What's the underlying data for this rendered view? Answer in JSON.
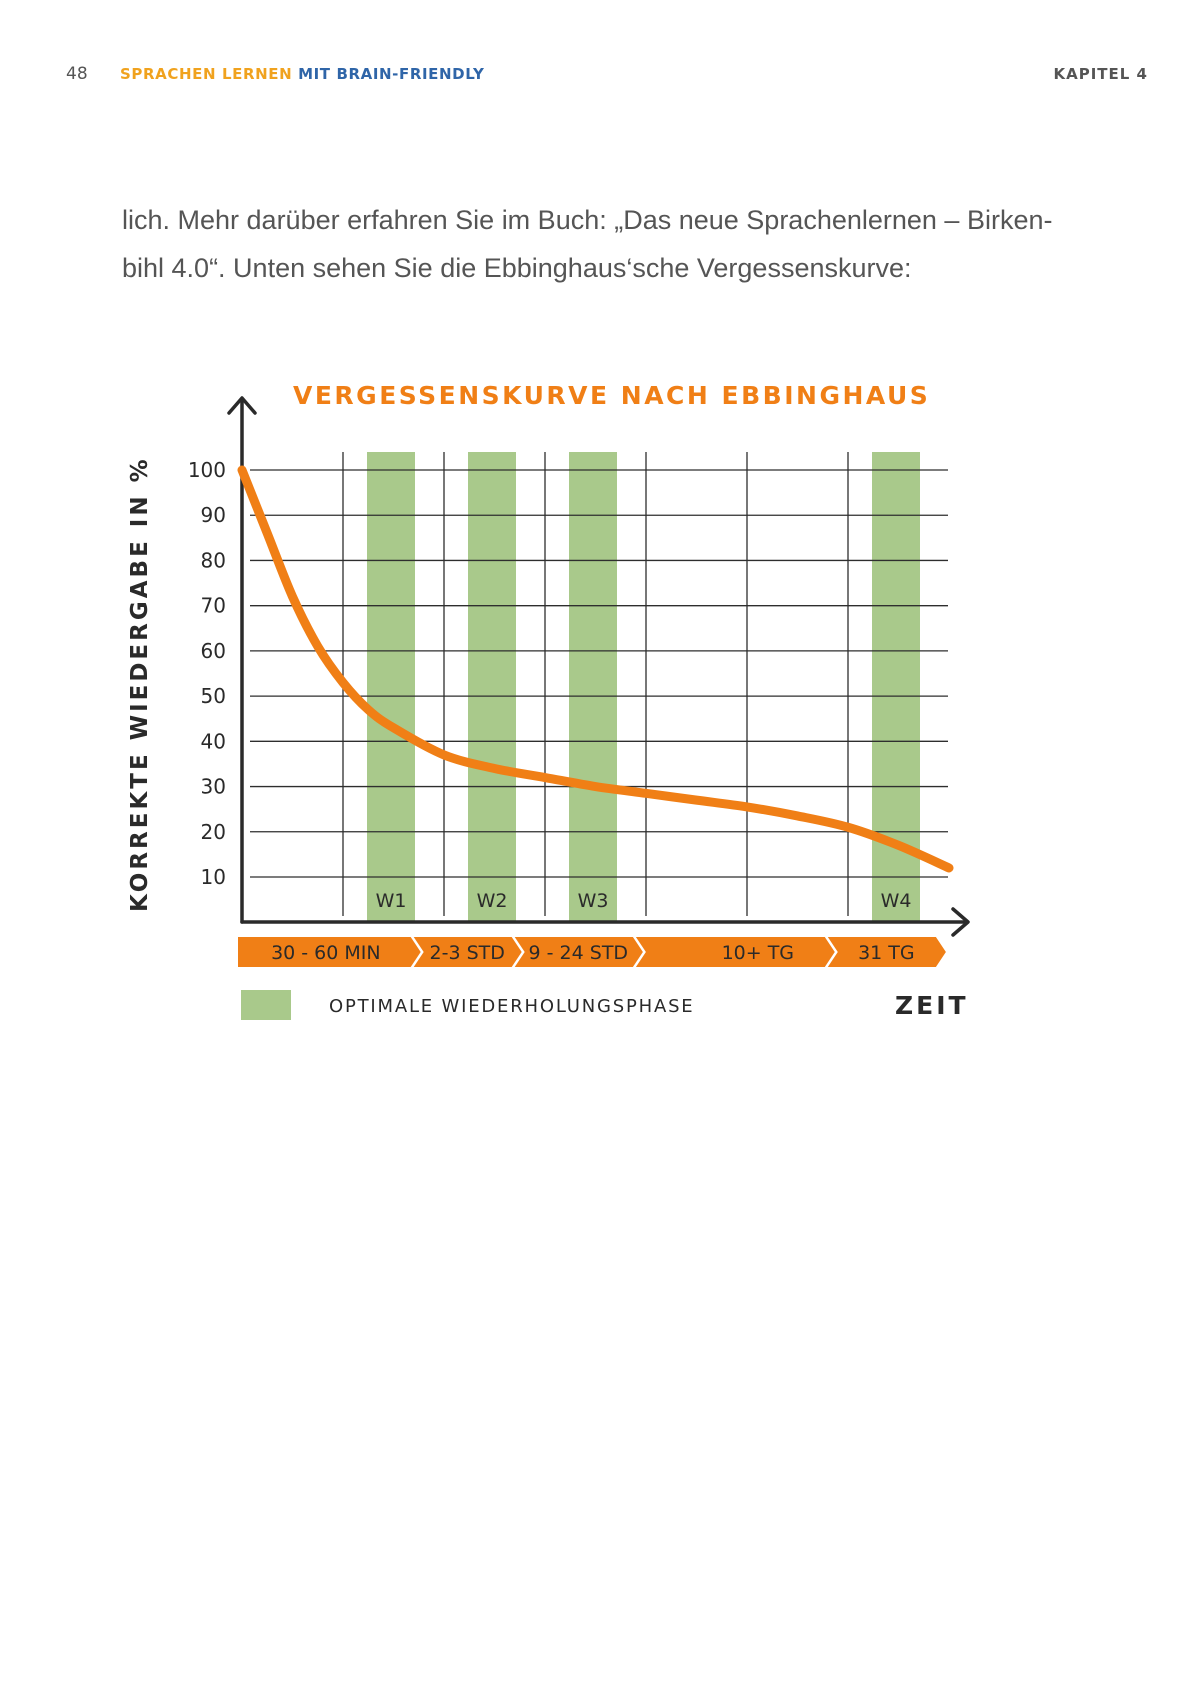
{
  "header": {
    "page_number": "48",
    "running_title_part1": "SPRACHEN LERNEN",
    "running_title_part2": "MIT BRAIN-FRIENDLY",
    "chapter": "KAPITEL 4"
  },
  "body": {
    "line1": "lich. Mehr darüber erfahren Sie im Buch: „Das neue Sprachenlernen – Birken-",
    "line2": "bihl 4.0“. Unten sehen Sie die  Ebbinghaus‘sche Vergessenskurve:"
  },
  "colors": {
    "accent_orange": "#f07f16",
    "green_band": "#a9c98b",
    "grid": "#2e2e2e",
    "title_orange": "#f07f16",
    "brand_yellow": "#f0a21e",
    "brand_blue": "#2f65a8"
  },
  "chart_data": {
    "type": "line",
    "title": "VERGESSENSKURVE NACH EBBINGHAUS",
    "ylabel": "KORREKTE WIEDERGABE IN %",
    "xlabel": "ZEIT",
    "ylim": [
      0,
      100
    ],
    "y_ticks": [
      100,
      90,
      80,
      70,
      60,
      50,
      40,
      30,
      20,
      10
    ],
    "grid": true,
    "x_columns": 7,
    "repetition_bands": [
      {
        "label": "W1",
        "column": 1
      },
      {
        "label": "W2",
        "column": 2
      },
      {
        "label": "W3",
        "column": 3
      },
      {
        "label": "W4",
        "column": 6
      }
    ],
    "series": [
      {
        "x": [
          0,
          0.25,
          0.5,
          0.75,
          1,
          1.25,
          1.5,
          2,
          2.5,
          3,
          3.5,
          4,
          4.5,
          5,
          5.5,
          6,
          6.5,
          7
        ],
        "y": [
          100,
          86,
          72,
          61,
          53,
          47,
          43,
          37,
          34,
          32,
          30,
          28.5,
          27,
          25.5,
          23.5,
          21,
          17,
          12
        ]
      }
    ],
    "time_segments": [
      {
        "label": "30 - 60 MIN",
        "columns": [
          0,
          1.7
        ]
      },
      {
        "label": "2-3 STD",
        "columns": [
          1.7,
          2.7
        ]
      },
      {
        "label": "9 - 24 STD",
        "columns": [
          2.7,
          3.9
        ]
      },
      {
        "label": "10+ TG",
        "columns": [
          3.9,
          5.8
        ]
      },
      {
        "label": "31 TG",
        "columns": [
          5.8,
          6.9
        ]
      }
    ],
    "legend": {
      "label": "OPTIMALE WIEDERHOLUNGSPHASE",
      "placement": "bottom-left"
    }
  }
}
